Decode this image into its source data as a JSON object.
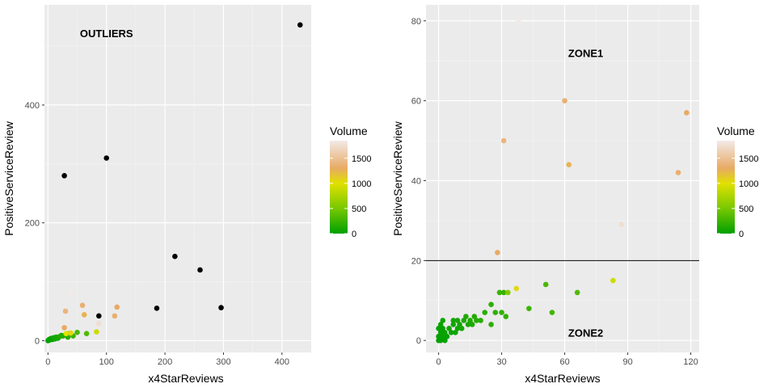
{
  "chart_data": [
    {
      "type": "scatter",
      "xlabel": "x4StarReviews",
      "ylabel": "PositiveServiceReview",
      "xlim": [
        -6,
        450
      ],
      "ylim": [
        -20,
        570
      ],
      "x_ticks": [
        0,
        100,
        200,
        300,
        400
      ],
      "y_ticks": [
        0,
        200,
        400
      ],
      "grid": true,
      "annotations": [
        {
          "text": "OUTLIERS",
          "x": 100,
          "y": 522
        }
      ],
      "legend": {
        "title": "Volume",
        "ticks": [
          0,
          500,
          1000,
          1500
        ],
        "position": "right",
        "range": [
          0,
          1850
        ]
      },
      "points": [
        {
          "x": 0,
          "y": 0,
          "v": 0
        },
        {
          "x": 1,
          "y": 1,
          "v": 10
        },
        {
          "x": 2,
          "y": 2,
          "v": 20
        },
        {
          "x": 3,
          "y": 1,
          "v": 30
        },
        {
          "x": 4,
          "y": 3,
          "v": 20
        },
        {
          "x": 5,
          "y": 2,
          "v": 40
        },
        {
          "x": 6,
          "y": 4,
          "v": 50
        },
        {
          "x": 8,
          "y": 2,
          "v": 30
        },
        {
          "x": 10,
          "y": 5,
          "v": 60
        },
        {
          "x": 12,
          "y": 3,
          "v": 80
        },
        {
          "x": 14,
          "y": 6,
          "v": 90
        },
        {
          "x": 17,
          "y": 4,
          "v": 70
        },
        {
          "x": 20,
          "y": 7,
          "v": 120
        },
        {
          "x": 23,
          "y": 9,
          "v": 150
        },
        {
          "x": 26,
          "y": 8,
          "v": 140
        },
        {
          "x": 30,
          "y": 10,
          "v": 180
        },
        {
          "x": 34,
          "y": 6,
          "v": 160
        },
        {
          "x": 36,
          "y": 12,
          "v": 260
        },
        {
          "x": 43,
          "y": 8,
          "v": 240
        },
        {
          "x": 50,
          "y": 14,
          "v": 300
        },
        {
          "x": 66,
          "y": 12,
          "v": 330
        },
        {
          "x": 83,
          "y": 15,
          "v": 900
        },
        {
          "x": 39,
          "y": 13,
          "v": 1050
        },
        {
          "x": 31,
          "y": 12,
          "v": 1000
        },
        {
          "x": 28,
          "y": 22,
          "v": 1300
        },
        {
          "x": 30,
          "y": 50,
          "v": 1400
        },
        {
          "x": 59,
          "y": 60,
          "v": 1350
        },
        {
          "x": 62,
          "y": 44,
          "v": 1250
        },
        {
          "x": 87,
          "y": 29,
          "v": 1750
        },
        {
          "x": 114,
          "y": 42,
          "v": 1350
        },
        {
          "x": 118,
          "y": 57,
          "v": 1300
        },
        {
          "x": 38,
          "y": 80,
          "v": 1900
        },
        {
          "x": 87,
          "y": 42,
          "v": "black"
        },
        {
          "x": 28,
          "y": 280,
          "v": "black"
        },
        {
          "x": 100,
          "y": 310,
          "v": "black"
        },
        {
          "x": 217,
          "y": 143,
          "v": "black"
        },
        {
          "x": 260,
          "y": 120,
          "v": "black"
        },
        {
          "x": 186,
          "y": 55,
          "v": "black"
        },
        {
          "x": 296,
          "y": 56,
          "v": "black"
        },
        {
          "x": 431,
          "y": 536,
          "v": "black"
        }
      ]
    },
    {
      "type": "scatter",
      "xlabel": "x4StarReviews",
      "ylabel": "PositiveServiceReview",
      "xlim": [
        -6,
        124
      ],
      "ylim": [
        -3,
        84
      ],
      "x_ticks": [
        0,
        30,
        60,
        90,
        120
      ],
      "y_ticks": [
        0,
        20,
        40,
        60,
        80
      ],
      "grid": true,
      "hline": 20,
      "annotations": [
        {
          "text": "ZONE1",
          "x": 70,
          "y": 72
        },
        {
          "text": "ZONE2",
          "x": 70,
          "y": 2
        }
      ],
      "legend": {
        "title": "Volume",
        "ticks": [
          0,
          500,
          1000,
          1500
        ],
        "position": "right",
        "range": [
          0,
          1850
        ]
      },
      "points": [
        {
          "x": 0,
          "y": 0,
          "v": 0
        },
        {
          "x": 0,
          "y": 1,
          "v": 10
        },
        {
          "x": 0,
          "y": 3,
          "v": 20
        },
        {
          "x": 1,
          "y": 0,
          "v": 10
        },
        {
          "x": 1,
          "y": 2,
          "v": 30
        },
        {
          "x": 1,
          "y": 4,
          "v": 40
        },
        {
          "x": 2,
          "y": 1,
          "v": 20
        },
        {
          "x": 2,
          "y": 3,
          "v": 30
        },
        {
          "x": 2,
          "y": 5,
          "v": 50
        },
        {
          "x": 3,
          "y": 0,
          "v": 10
        },
        {
          "x": 3,
          "y": 2,
          "v": 40
        },
        {
          "x": 4,
          "y": 1,
          "v": 30
        },
        {
          "x": 5,
          "y": 3,
          "v": 60
        },
        {
          "x": 6,
          "y": 2,
          "v": 50
        },
        {
          "x": 7,
          "y": 4,
          "v": 70
        },
        {
          "x": 7,
          "y": 5,
          "v": 80
        },
        {
          "x": 8,
          "y": 2,
          "v": 60
        },
        {
          "x": 9,
          "y": 3,
          "v": 70
        },
        {
          "x": 9,
          "y": 5,
          "v": 90
        },
        {
          "x": 10,
          "y": 4,
          "v": 80
        },
        {
          "x": 11,
          "y": 3,
          "v": 90
        },
        {
          "x": 12,
          "y": 5,
          "v": 110
        },
        {
          "x": 13,
          "y": 6,
          "v": 120
        },
        {
          "x": 14,
          "y": 4,
          "v": 100
        },
        {
          "x": 15,
          "y": 5,
          "v": 130
        },
        {
          "x": 16,
          "y": 4,
          "v": 120
        },
        {
          "x": 17,
          "y": 6,
          "v": 140
        },
        {
          "x": 18,
          "y": 5,
          "v": 150
        },
        {
          "x": 20,
          "y": 5,
          "v": 160
        },
        {
          "x": 22,
          "y": 7,
          "v": 170
        },
        {
          "x": 25,
          "y": 4,
          "v": 180
        },
        {
          "x": 25,
          "y": 9,
          "v": 190
        },
        {
          "x": 27,
          "y": 7,
          "v": 200
        },
        {
          "x": 29,
          "y": 12,
          "v": 240
        },
        {
          "x": 31,
          "y": 12,
          "v": 230
        },
        {
          "x": 30,
          "y": 7,
          "v": 210
        },
        {
          "x": 32,
          "y": 6,
          "v": 200
        },
        {
          "x": 33,
          "y": 12,
          "v": 550
        },
        {
          "x": 43,
          "y": 8,
          "v": 250
        },
        {
          "x": 51,
          "y": 14,
          "v": 300
        },
        {
          "x": 54,
          "y": 7,
          "v": 280
        },
        {
          "x": 66,
          "y": 12,
          "v": 330
        },
        {
          "x": 83,
          "y": 15,
          "v": 900
        },
        {
          "x": 37,
          "y": 13,
          "v": 1050
        },
        {
          "x": 28,
          "y": 22,
          "v": 1300
        },
        {
          "x": 31,
          "y": 50,
          "v": 1400
        },
        {
          "x": 60,
          "y": 60,
          "v": 1350
        },
        {
          "x": 62,
          "y": 44,
          "v": 1250
        },
        {
          "x": 87,
          "y": 29,
          "v": 1750
        },
        {
          "x": 114,
          "y": 42,
          "v": 1350
        },
        {
          "x": 118,
          "y": 57,
          "v": 1300
        },
        {
          "x": 38,
          "y": 80,
          "v": 1900
        }
      ]
    }
  ]
}
